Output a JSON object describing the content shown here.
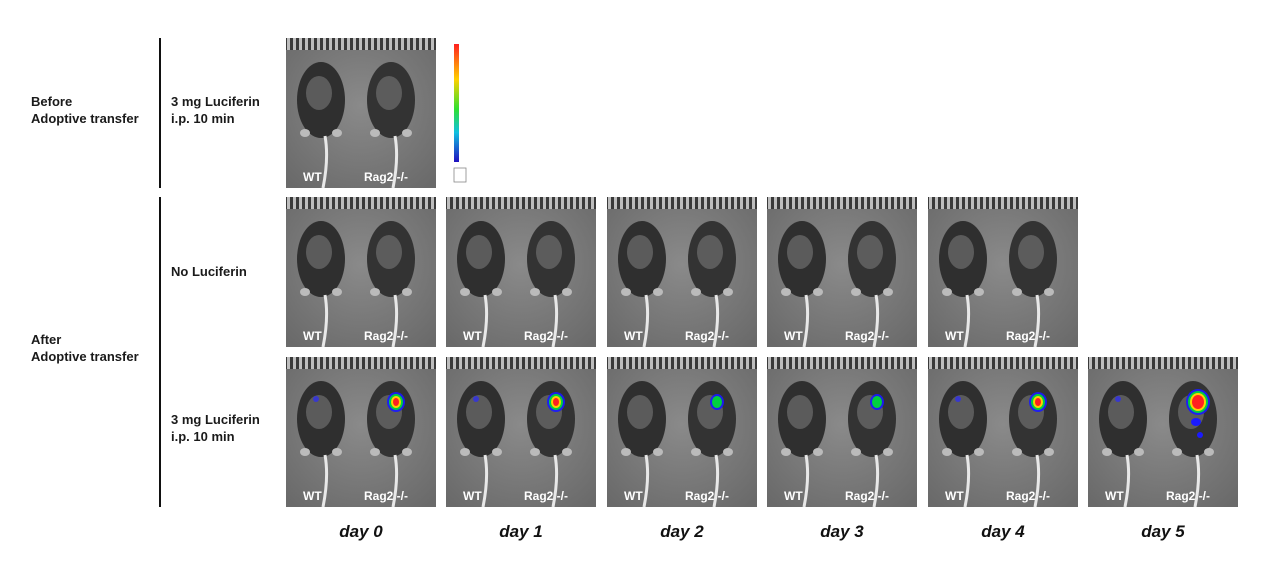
{
  "rows": {
    "before_group": "Before\nAdoptive transfer",
    "after_group": "After\nAdoptive transfer",
    "before_condition": "3 mg Luciferin\ni.p. 10 min",
    "no_luciferin": "No Luciferin",
    "after_condition": "3 mg Luciferin\ni.p. 10 min"
  },
  "panel_labels": {
    "wt": "WT",
    "rag": "Rag2 -/-"
  },
  "days": [
    "day 0",
    "day 1",
    "day 2",
    "day 3",
    "day 4",
    "day 5"
  ],
  "colors": {
    "background": "#ffffff",
    "panel": "#7a7a7a",
    "mouse": "#2e2e2e",
    "signal_low": "#1a1aff",
    "signal_mid": "#00d040",
    "signal_high": "#ff2020"
  }
}
